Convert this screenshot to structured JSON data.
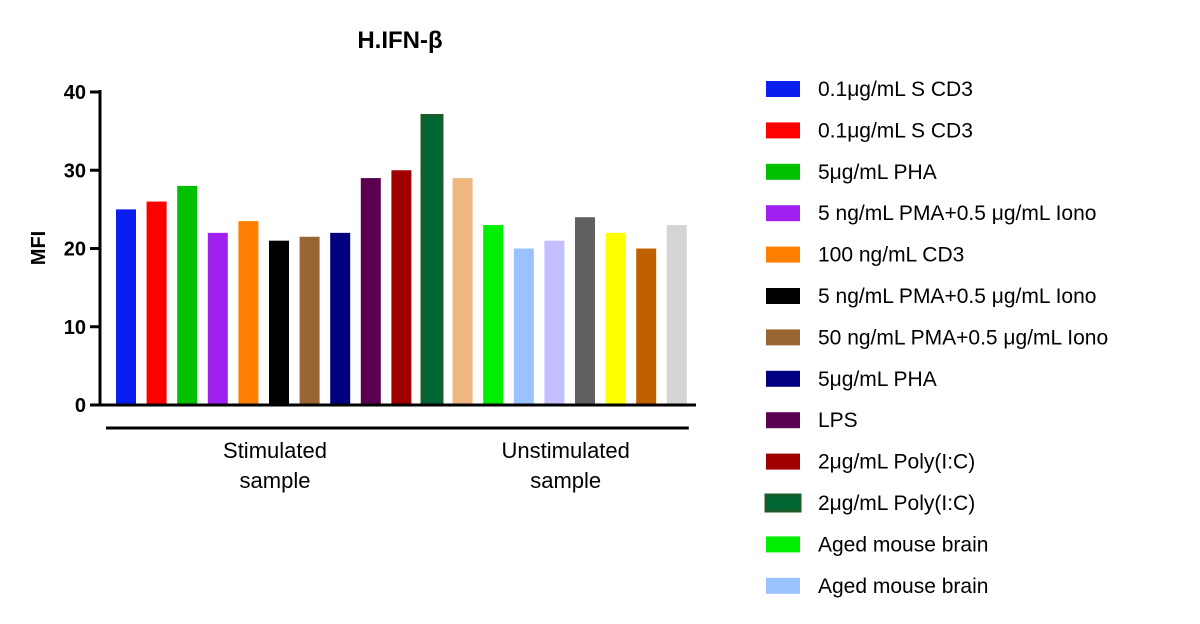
{
  "chart_data": {
    "type": "bar",
    "title": "H.IFN-β",
    "ylabel": "MFI",
    "xlabel": "",
    "ylim": [
      0,
      40
    ],
    "yticks": [
      0,
      10,
      20,
      30,
      40
    ],
    "grid": false,
    "legend_placement": "right",
    "bars": [
      {
        "value": 25,
        "color": "#0a1ef0"
      },
      {
        "value": 26,
        "color": "#ff0000"
      },
      {
        "value": 28,
        "color": "#00c000"
      },
      {
        "value": 22,
        "color": "#a020f0"
      },
      {
        "value": 23.5,
        "color": "#ff8000"
      },
      {
        "value": 21,
        "color": "#000000"
      },
      {
        "value": 21.5,
        "color": "#996633"
      },
      {
        "value": 22,
        "color": "#000080"
      },
      {
        "value": 29,
        "color": "#5a0050"
      },
      {
        "value": 30,
        "color": "#a00000"
      },
      {
        "value": 37,
        "color": "#006633",
        "edge": "#1a5c2a"
      },
      {
        "value": 29,
        "color": "#f0b880"
      },
      {
        "value": 23,
        "color": "#00ee00"
      },
      {
        "value": 20,
        "color": "#99c2ff"
      },
      {
        "value": 21,
        "color": "#c4c0ff"
      },
      {
        "value": 24,
        "color": "#606060"
      },
      {
        "value": 22,
        "color": "#ffff00"
      },
      {
        "value": 20,
        "color": "#c06000"
      },
      {
        "value": 23,
        "color": "#d4d4d4"
      }
    ],
    "groups": [
      {
        "label_lines": [
          "Stimulated",
          "sample"
        ],
        "first_bar": 0,
        "last_bar": 10
      },
      {
        "label_lines": [
          "Unstimulated",
          "sample"
        ],
        "first_bar": 11,
        "last_bar": 18
      }
    ],
    "legend": [
      {
        "label": "0.1μg/mL S CD3",
        "color": "#0a1ef0"
      },
      {
        "label": "0.1μg/mL S CD3",
        "color": "#ff0000"
      },
      {
        "label": "5μg/mL PHA",
        "color": "#00c000"
      },
      {
        "label": "5 ng/mL PMA+0.5 μg/mL Iono",
        "color": "#a020f0"
      },
      {
        "label": "100 ng/mL CD3",
        "color": "#ff8000"
      },
      {
        "label": "5 ng/mL PMA+0.5 μg/mL Iono",
        "color": "#000000"
      },
      {
        "label": "50 ng/mL PMA+0.5 μg/mL Iono",
        "color": "#996633"
      },
      {
        "label": "5μg/mL PHA",
        "color": "#000080"
      },
      {
        "label": "LPS",
        "color": "#5a0050"
      },
      {
        "label": "2μg/mL Poly(I:C)",
        "color": "#a00000"
      },
      {
        "label": "2μg/mL Poly(I:C)",
        "color": "#006633",
        "edge": "#1a5c2a"
      },
      {
        "label": "Aged mouse brain",
        "color": "#00ee00"
      },
      {
        "label": "Aged mouse brain",
        "color": "#99c2ff"
      }
    ]
  }
}
